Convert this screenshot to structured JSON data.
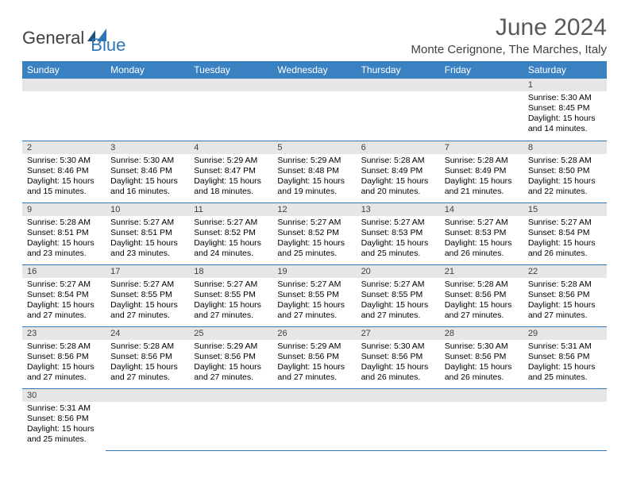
{
  "logo": {
    "text1": "General",
    "text2": "Blue"
  },
  "title": "June 2024",
  "location": "Monte Cerignone, The Marches, Italy",
  "colors": {
    "header_bg": "#3a81c2",
    "header_text": "#ffffff",
    "daynum_bg": "#e6e6e6",
    "border": "#2e75b6",
    "title_color": "#595959",
    "logo_gray": "#404040",
    "logo_blue": "#2e75b6"
  },
  "weekdays": [
    "Sunday",
    "Monday",
    "Tuesday",
    "Wednesday",
    "Thursday",
    "Friday",
    "Saturday"
  ],
  "weeks": [
    [
      null,
      null,
      null,
      null,
      null,
      null,
      {
        "n": "1",
        "sunrise": "Sunrise: 5:30 AM",
        "sunset": "Sunset: 8:45 PM",
        "daylight": "Daylight: 15 hours and 14 minutes."
      }
    ],
    [
      {
        "n": "2",
        "sunrise": "Sunrise: 5:30 AM",
        "sunset": "Sunset: 8:46 PM",
        "daylight": "Daylight: 15 hours and 15 minutes."
      },
      {
        "n": "3",
        "sunrise": "Sunrise: 5:30 AM",
        "sunset": "Sunset: 8:46 PM",
        "daylight": "Daylight: 15 hours and 16 minutes."
      },
      {
        "n": "4",
        "sunrise": "Sunrise: 5:29 AM",
        "sunset": "Sunset: 8:47 PM",
        "daylight": "Daylight: 15 hours and 18 minutes."
      },
      {
        "n": "5",
        "sunrise": "Sunrise: 5:29 AM",
        "sunset": "Sunset: 8:48 PM",
        "daylight": "Daylight: 15 hours and 19 minutes."
      },
      {
        "n": "6",
        "sunrise": "Sunrise: 5:28 AM",
        "sunset": "Sunset: 8:49 PM",
        "daylight": "Daylight: 15 hours and 20 minutes."
      },
      {
        "n": "7",
        "sunrise": "Sunrise: 5:28 AM",
        "sunset": "Sunset: 8:49 PM",
        "daylight": "Daylight: 15 hours and 21 minutes."
      },
      {
        "n": "8",
        "sunrise": "Sunrise: 5:28 AM",
        "sunset": "Sunset: 8:50 PM",
        "daylight": "Daylight: 15 hours and 22 minutes."
      }
    ],
    [
      {
        "n": "9",
        "sunrise": "Sunrise: 5:28 AM",
        "sunset": "Sunset: 8:51 PM",
        "daylight": "Daylight: 15 hours and 23 minutes."
      },
      {
        "n": "10",
        "sunrise": "Sunrise: 5:27 AM",
        "sunset": "Sunset: 8:51 PM",
        "daylight": "Daylight: 15 hours and 23 minutes."
      },
      {
        "n": "11",
        "sunrise": "Sunrise: 5:27 AM",
        "sunset": "Sunset: 8:52 PM",
        "daylight": "Daylight: 15 hours and 24 minutes."
      },
      {
        "n": "12",
        "sunrise": "Sunrise: 5:27 AM",
        "sunset": "Sunset: 8:52 PM",
        "daylight": "Daylight: 15 hours and 25 minutes."
      },
      {
        "n": "13",
        "sunrise": "Sunrise: 5:27 AM",
        "sunset": "Sunset: 8:53 PM",
        "daylight": "Daylight: 15 hours and 25 minutes."
      },
      {
        "n": "14",
        "sunrise": "Sunrise: 5:27 AM",
        "sunset": "Sunset: 8:53 PM",
        "daylight": "Daylight: 15 hours and 26 minutes."
      },
      {
        "n": "15",
        "sunrise": "Sunrise: 5:27 AM",
        "sunset": "Sunset: 8:54 PM",
        "daylight": "Daylight: 15 hours and 26 minutes."
      }
    ],
    [
      {
        "n": "16",
        "sunrise": "Sunrise: 5:27 AM",
        "sunset": "Sunset: 8:54 PM",
        "daylight": "Daylight: 15 hours and 27 minutes."
      },
      {
        "n": "17",
        "sunrise": "Sunrise: 5:27 AM",
        "sunset": "Sunset: 8:55 PM",
        "daylight": "Daylight: 15 hours and 27 minutes."
      },
      {
        "n": "18",
        "sunrise": "Sunrise: 5:27 AM",
        "sunset": "Sunset: 8:55 PM",
        "daylight": "Daylight: 15 hours and 27 minutes."
      },
      {
        "n": "19",
        "sunrise": "Sunrise: 5:27 AM",
        "sunset": "Sunset: 8:55 PM",
        "daylight": "Daylight: 15 hours and 27 minutes."
      },
      {
        "n": "20",
        "sunrise": "Sunrise: 5:27 AM",
        "sunset": "Sunset: 8:55 PM",
        "daylight": "Daylight: 15 hours and 27 minutes."
      },
      {
        "n": "21",
        "sunrise": "Sunrise: 5:28 AM",
        "sunset": "Sunset: 8:56 PM",
        "daylight": "Daylight: 15 hours and 27 minutes."
      },
      {
        "n": "22",
        "sunrise": "Sunrise: 5:28 AM",
        "sunset": "Sunset: 8:56 PM",
        "daylight": "Daylight: 15 hours and 27 minutes."
      }
    ],
    [
      {
        "n": "23",
        "sunrise": "Sunrise: 5:28 AM",
        "sunset": "Sunset: 8:56 PM",
        "daylight": "Daylight: 15 hours and 27 minutes."
      },
      {
        "n": "24",
        "sunrise": "Sunrise: 5:28 AM",
        "sunset": "Sunset: 8:56 PM",
        "daylight": "Daylight: 15 hours and 27 minutes."
      },
      {
        "n": "25",
        "sunrise": "Sunrise: 5:29 AM",
        "sunset": "Sunset: 8:56 PM",
        "daylight": "Daylight: 15 hours and 27 minutes."
      },
      {
        "n": "26",
        "sunrise": "Sunrise: 5:29 AM",
        "sunset": "Sunset: 8:56 PM",
        "daylight": "Daylight: 15 hours and 27 minutes."
      },
      {
        "n": "27",
        "sunrise": "Sunrise: 5:30 AM",
        "sunset": "Sunset: 8:56 PM",
        "daylight": "Daylight: 15 hours and 26 minutes."
      },
      {
        "n": "28",
        "sunrise": "Sunrise: 5:30 AM",
        "sunset": "Sunset: 8:56 PM",
        "daylight": "Daylight: 15 hours and 26 minutes."
      },
      {
        "n": "29",
        "sunrise": "Sunrise: 5:31 AM",
        "sunset": "Sunset: 8:56 PM",
        "daylight": "Daylight: 15 hours and 25 minutes."
      }
    ],
    [
      {
        "n": "30",
        "sunrise": "Sunrise: 5:31 AM",
        "sunset": "Sunset: 8:56 PM",
        "daylight": "Daylight: 15 hours and 25 minutes."
      },
      null,
      null,
      null,
      null,
      null,
      null
    ]
  ]
}
